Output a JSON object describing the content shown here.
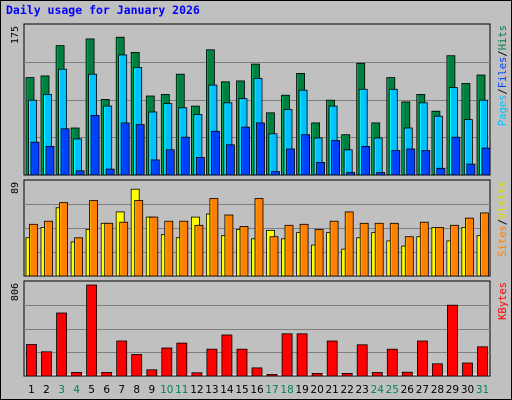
{
  "title": "Daily usage for January 2026",
  "colors": {
    "background": "#c0c0c0",
    "plot_bg": "#c0c0c0",
    "grid": "#808080",
    "hits": "#008040",
    "files": "#00c0ff",
    "pages": "#0040ff",
    "visits": "#ffff00",
    "sites": "#ff8000",
    "kbytes": "#ff0000",
    "weekend_label": "#00805c",
    "weekday_label": "#000000"
  },
  "chart_data": [
    {
      "type": "bar",
      "panel": "hits-files-pages",
      "ymax_label": "175",
      "ylim": [
        0,
        175
      ],
      "legend": [
        "Pages",
        "/",
        "Files",
        "/",
        "Hits"
      ],
      "categories": [
        "1",
        "2",
        "3",
        "4",
        "5",
        "6",
        "7",
        "8",
        "9",
        "10",
        "11",
        "12",
        "13",
        "14",
        "15",
        "16",
        "17",
        "18",
        "19",
        "20",
        "21",
        "22",
        "23",
        "24",
        "25",
        "26",
        "27",
        "28",
        "29",
        "30",
        "31"
      ],
      "weekend_days": [
        "3",
        "4",
        "10",
        "11",
        "17",
        "18",
        "24",
        "25",
        "31"
      ],
      "series": [
        {
          "name": "Hits",
          "values": [
            116,
            118,
            154,
            56,
            162,
            90,
            164,
            146,
            94,
            96,
            120,
            82,
            149,
            111,
            112,
            132,
            74,
            95,
            121,
            62,
            89,
            48,
            133,
            62,
            116,
            87,
            96,
            76,
            142,
            109,
            119
          ]
        },
        {
          "name": "Files",
          "values": [
            89,
            96,
            126,
            43,
            120,
            82,
            143,
            128,
            75,
            85,
            80,
            72,
            107,
            86,
            91,
            115,
            49,
            78,
            101,
            44,
            82,
            30,
            102,
            44,
            102,
            56,
            86,
            70,
            104,
            66,
            89
          ]
        },
        {
          "name": "Pages",
          "values": [
            39,
            34,
            55,
            5,
            71,
            7,
            62,
            60,
            18,
            30,
            45,
            21,
            52,
            36,
            57,
            62,
            4,
            31,
            48,
            15,
            41,
            3,
            34,
            3,
            29,
            31,
            29,
            8,
            45,
            13,
            32
          ]
        }
      ]
    },
    {
      "type": "bar",
      "panel": "visits-sites",
      "ymax_label": "89",
      "ylim": [
        0,
        89
      ],
      "legend": [
        "Sites",
        "/",
        "Visits"
      ],
      "categories": [
        "1",
        "2",
        "3",
        "4",
        "5",
        "6",
        "7",
        "8",
        "9",
        "10",
        "11",
        "12",
        "13",
        "14",
        "15",
        "16",
        "17",
        "18",
        "19",
        "20",
        "21",
        "22",
        "23",
        "24",
        "25",
        "26",
        "27",
        "28",
        "29",
        "30",
        "31"
      ],
      "series": [
        {
          "name": "Visits",
          "values": [
            37,
            47,
            66,
            33,
            45,
            51,
            62,
            84,
            57,
            40,
            37,
            57,
            60,
            39,
            45,
            36,
            44,
            36,
            42,
            30,
            42,
            26,
            37,
            42,
            34,
            29,
            38,
            47,
            34,
            47,
            39
          ]
        },
        {
          "name": "Sites",
          "values": [
            50,
            53,
            71,
            37,
            73,
            51,
            52,
            73,
            57,
            53,
            53,
            49,
            75,
            59,
            48,
            75,
            38,
            49,
            50,
            45,
            53,
            62,
            51,
            51,
            51,
            38,
            52,
            47,
            49,
            56,
            61
          ]
        }
      ]
    },
    {
      "type": "bar",
      "panel": "kbytes",
      "ymax_label": "806",
      "ylim": [
        0,
        806
      ],
      "legend": [
        "KBytes"
      ],
      "categories": [
        "1",
        "2",
        "3",
        "4",
        "5",
        "6",
        "7",
        "8",
        "9",
        "10",
        "11",
        "12",
        "13",
        "14",
        "15",
        "16",
        "17",
        "18",
        "19",
        "20",
        "21",
        "22",
        "23",
        "24",
        "25",
        "26",
        "27",
        "28",
        "29",
        "30",
        "31"
      ],
      "series": [
        {
          "name": "KBytes",
          "values": [
            279,
            214,
            558,
            32,
            806,
            32,
            310,
            190,
            55,
            248,
            291,
            28,
            237,
            363,
            237,
            72,
            14,
            374,
            374,
            23,
            310,
            23,
            276,
            31,
            237,
            34,
            310,
            108,
            627,
            115,
            259
          ]
        }
      ]
    }
  ]
}
